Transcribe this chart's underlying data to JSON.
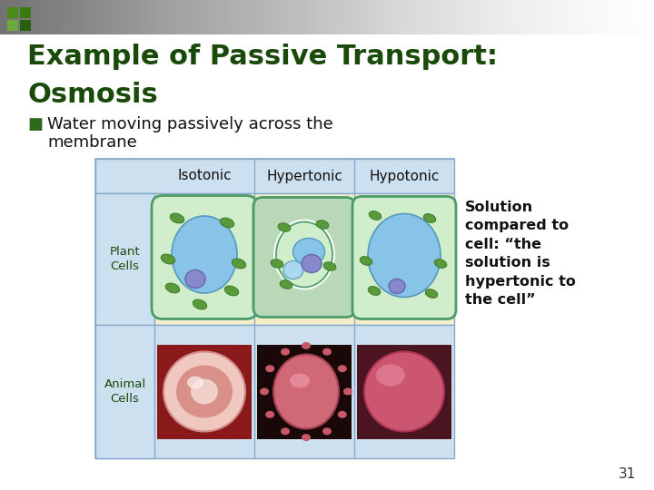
{
  "title_line1": "Example of Passive Transport:",
  "title_line2": "Osmosis",
  "bullet_marker": "■",
  "bullet_text": "Water moving passively across the\nmembrane",
  "col_headers": [
    "Isotonic",
    "Hypertonic",
    "Hypotonic"
  ],
  "row_headers": [
    "Plant\nCells",
    "Animal\nCells"
  ],
  "side_note_lines": [
    "Solution",
    "compared to",
    "cell: “the",
    "solution is",
    "hypertonic to",
    "the cell”"
  ],
  "page_number": "31",
  "slide_bg": "#ffffff",
  "title_color": "#1a4a0a",
  "bullet_color": "#2a6a1a",
  "table_hdr_bg": "#cce0f0",
  "table_row1_bg": "#f5eecb",
  "table_row2_bg": "#ddeeff",
  "table_border": "#88aacc",
  "cell_wall_color": "#7abf9a",
  "cell_wall_edge": "#4a9a6a",
  "vacuole_color": "#88c4e8",
  "vacuole_edge": "#5599bb",
  "cytoplasm_color": "#d0eecc",
  "nucleus_color": "#8888cc",
  "chloro_color": "#5a9a3a",
  "chloro_edge": "#3a7a2a"
}
